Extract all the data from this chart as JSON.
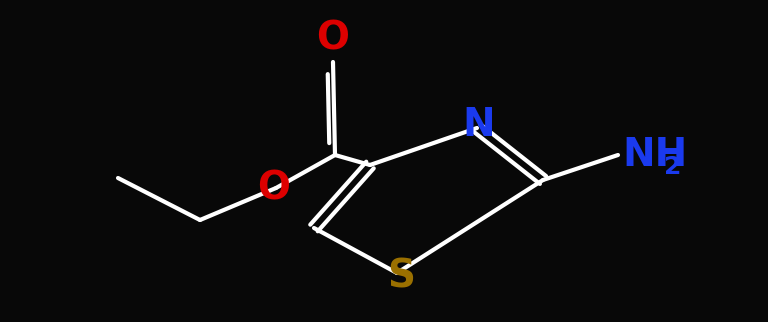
{
  "background_color": "#080808",
  "bond_color": "#ffffff",
  "bond_width": 3.0,
  "atom_colors": {
    "O": "#dd0000",
    "N": "#1a3aee",
    "S": "#9a7000",
    "NH2_main": "#1a3aee",
    "NH2_sub": "#1a3aee"
  },
  "font_size_large": 28,
  "font_size_sub": 18,
  "xlim": [
    0,
    7.68
  ],
  "ylim": [
    0,
    3.22
  ]
}
